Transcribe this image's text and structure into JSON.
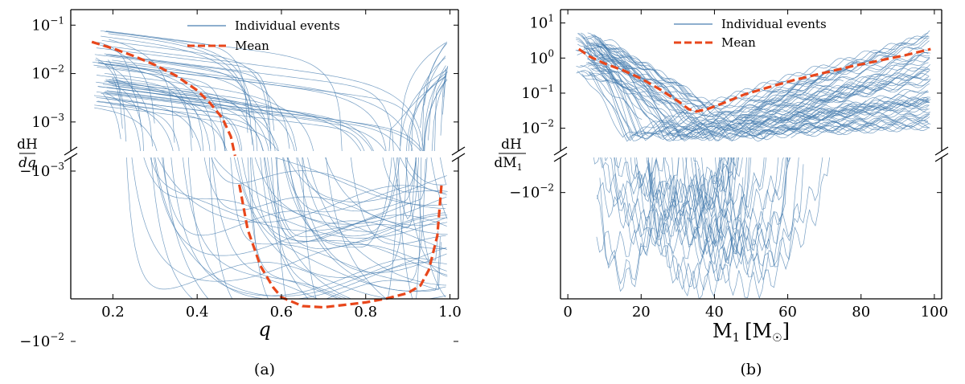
{
  "chart_data": [
    {
      "type": "line",
      "panel_caption": "(a)",
      "xlabel": "q",
      "ylabel_num": "dH",
      "ylabel_den": "dq",
      "xlim": [
        0.1,
        1.02
      ],
      "xticks": [
        "0.2",
        "0.4",
        "0.6",
        "0.8",
        "1.0"
      ],
      "xtick_values": [
        0.2,
        0.4,
        0.6,
        0.8,
        1.0
      ],
      "yscale": "symlog (broken axis)",
      "yticks_pos": [
        {
          "base": "10",
          "exp": "−1",
          "value": 0.1
        },
        {
          "base": "10",
          "exp": "−2",
          "value": 0.01
        },
        {
          "base": "10",
          "exp": "−3",
          "value": 0.001
        }
      ],
      "yticks_neg": [
        {
          "label": "−10",
          "exp": "−3",
          "value": -0.001
        },
        {
          "label": "−10",
          "exp": "−2",
          "value": -0.01
        }
      ],
      "legend": [
        "Individual events",
        "Mean"
      ],
      "mean_series": {
        "name": "Mean",
        "x": [
          0.15,
          0.2,
          0.25,
          0.3,
          0.35,
          0.4,
          0.43,
          0.46,
          0.48,
          0.49,
          0.5,
          0.52,
          0.55,
          0.58,
          0.6,
          0.65,
          0.7,
          0.75,
          0.8,
          0.85,
          0.9,
          0.93,
          0.95,
          0.97,
          0.98,
          0.99
        ],
        "y": [
          0.045,
          0.033,
          0.023,
          0.015,
          0.009,
          0.0045,
          0.0025,
          0.0012,
          0.0005,
          0.0002,
          -0.0012,
          -0.0022,
          -0.0036,
          -0.0048,
          -0.0055,
          -0.0062,
          -0.0063,
          -0.0061,
          -0.0059,
          -0.0056,
          -0.0052,
          -0.0047,
          -0.0038,
          -0.0024,
          -0.0012,
          0.0008
        ]
      },
      "individual_events_count": 60
    },
    {
      "type": "line",
      "panel_caption": "(b)",
      "xlabel": "M",
      "xlabel_sub": "1",
      "xlabel_unit": "[M",
      "xlabel_unit_close": "]",
      "ylabel_num": "dH",
      "ylabel_den": "dM",
      "ylabel_den_sub": "1",
      "xlim": [
        -2,
        102
      ],
      "xticks": [
        "0",
        "20",
        "40",
        "60",
        "80",
        "100"
      ],
      "xtick_values": [
        0,
        20,
        40,
        60,
        80,
        100
      ],
      "yscale": "symlog (broken axis)",
      "yticks_pos": [
        {
          "base": "10",
          "exp": "1",
          "value": 10
        },
        {
          "base": "10",
          "exp": "0",
          "value": 1
        },
        {
          "base": "10",
          "exp": "−1",
          "value": 0.1
        },
        {
          "base": "10",
          "exp": "−2",
          "value": 0.01
        }
      ],
      "yticks_neg": [
        {
          "label": "−10",
          "exp": "−2",
          "value": -0.01
        }
      ],
      "legend": [
        "Individual events",
        "Mean"
      ],
      "mean_series": {
        "name": "Mean",
        "x": [
          3,
          6,
          10,
          15,
          20,
          25,
          30,
          33,
          35,
          38,
          42,
          48,
          55,
          62,
          70,
          78,
          85,
          92,
          99
        ],
        "y": [
          1.8,
          1.1,
          0.7,
          0.45,
          0.26,
          0.13,
          0.06,
          0.035,
          0.03,
          0.035,
          0.05,
          0.09,
          0.15,
          0.24,
          0.38,
          0.6,
          0.85,
          1.2,
          1.8
        ]
      },
      "individual_events_count": 70
    }
  ],
  "colors": {
    "event_line": "#4a7fb0",
    "mean_line": "#e8471c"
  }
}
